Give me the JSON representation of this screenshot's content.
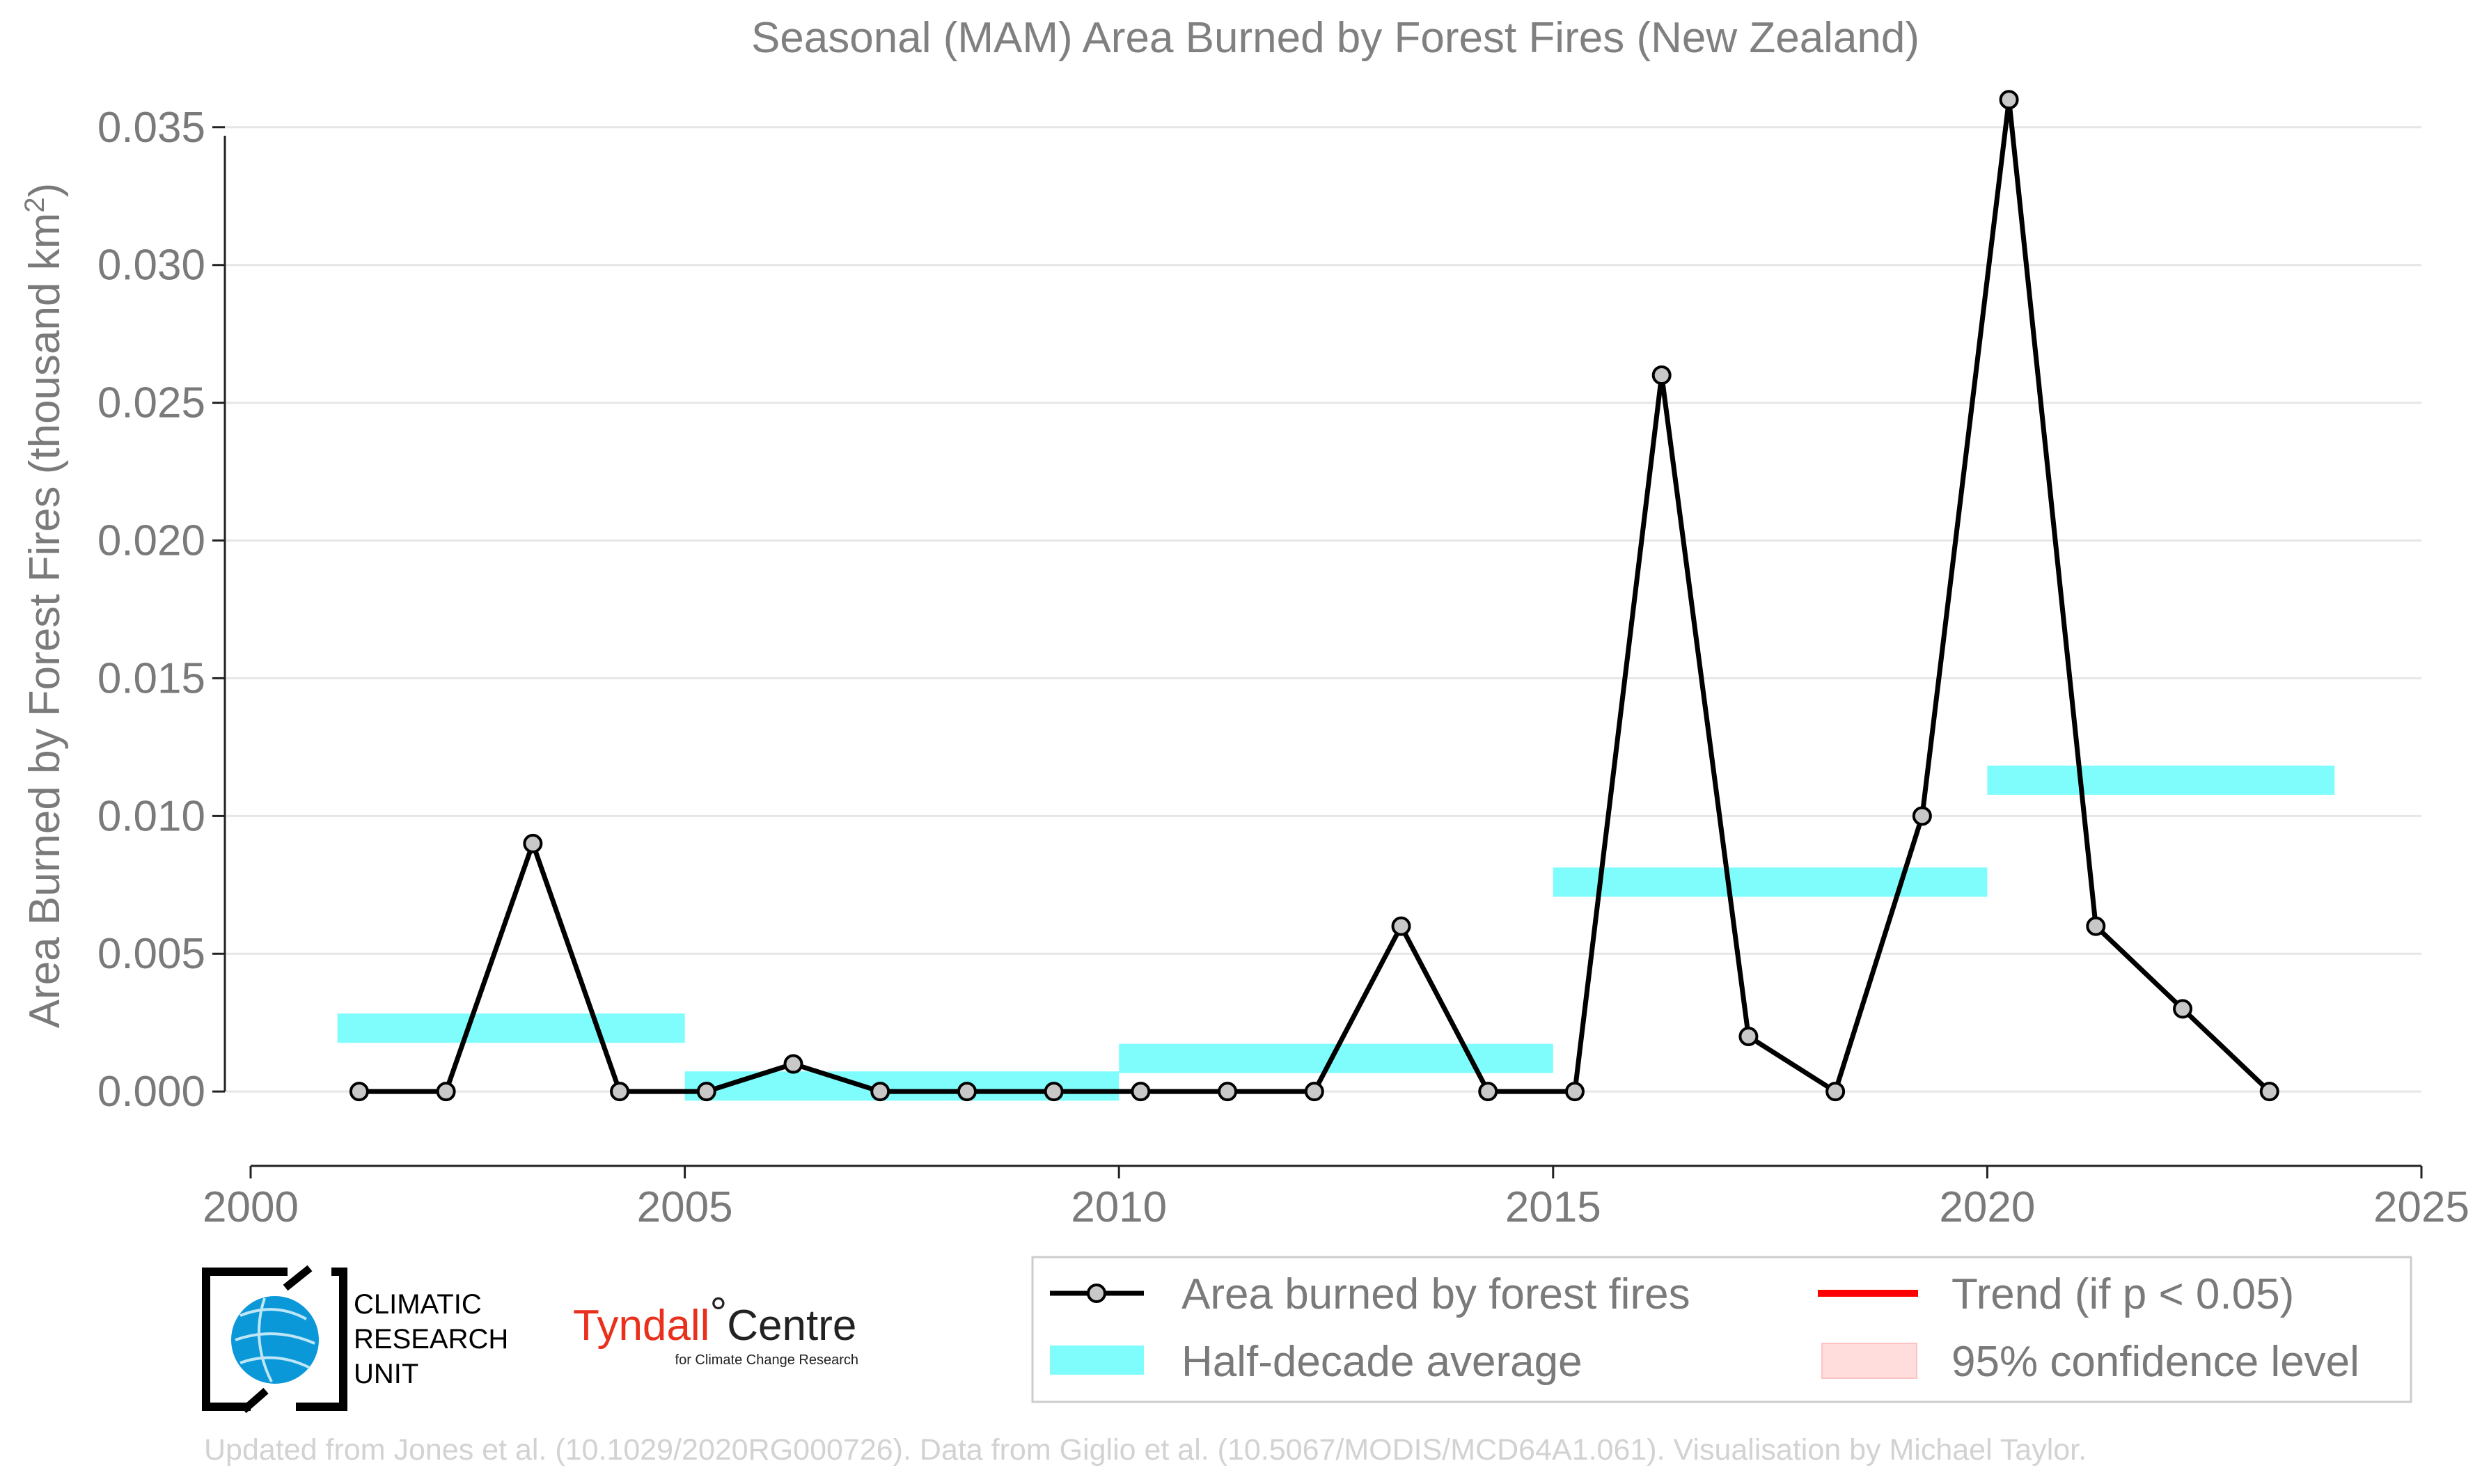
{
  "chart_data": {
    "type": "line",
    "title": "Seasonal (MAM) Area Burned by Forest Fires (New Zealand)",
    "ylabel_main": "Area Burned by Forest Fires (thousand km",
    "ylabel_sup": "2",
    "ylabel_end": ")",
    "xlim": [
      2000,
      2025
    ],
    "ylim": [
      -0.0027,
      0.0355
    ],
    "x_ticks": [
      2000,
      2005,
      2010,
      2015,
      2020,
      2025
    ],
    "x_tick_labels": [
      "2000",
      "2005",
      "2010",
      "2015",
      "2020",
      "2025"
    ],
    "y_ticks": [
      0.0,
      0.005,
      0.01,
      0.015,
      0.02,
      0.025,
      0.03,
      0.035
    ],
    "y_tick_labels": [
      "0.000",
      "0.005",
      "0.010",
      "0.015",
      "0.020",
      "0.025",
      "0.030",
      "0.035"
    ],
    "grid": "horizontal",
    "legend_position": "bottom-right",
    "series": [
      {
        "name": "Area burned by forest fires",
        "color": "#000000",
        "marker_fill": "#c8c8c8",
        "x": [
          2001.25,
          2002.25,
          2003.25,
          2004.25,
          2005.25,
          2006.25,
          2007.25,
          2008.25,
          2009.25,
          2010.25,
          2011.25,
          2012.25,
          2013.25,
          2014.25,
          2015.25,
          2016.25,
          2017.25,
          2018.25,
          2019.25,
          2020.25,
          2021.25,
          2022.25,
          2023.25
        ],
        "values": [
          0.0,
          0.0,
          0.009,
          0.0,
          0.0,
          0.001,
          0.0,
          0.0,
          0.0,
          0.0,
          0.0,
          0.0,
          0.006,
          0.0,
          0.0,
          0.026,
          0.002,
          0.0,
          0.01,
          0.036,
          0.006,
          0.003,
          0.0
        ]
      }
    ],
    "half_decade_average": {
      "name": "Half-decade average",
      "color": "#7ffdfd",
      "segments": [
        {
          "x0": 2001,
          "x1": 2005,
          "value": 0.0023
        },
        {
          "x0": 2005,
          "x1": 2010,
          "value": 0.0002
        },
        {
          "x0": 2010,
          "x1": 2015,
          "value": 0.0012
        },
        {
          "x0": 2015,
          "x1": 2020,
          "value": 0.0076
        },
        {
          "x0": 2020,
          "x1": 2024,
          "value": 0.0113
        }
      ]
    },
    "legend": [
      {
        "label": "Area burned by forest fires",
        "kind": "line-marker",
        "color": "#000000"
      },
      {
        "label": "Half-decade average",
        "kind": "band",
        "color": "#7ffdfd"
      },
      {
        "label": "Trend (if p < 0.05)",
        "kind": "line",
        "color": "#ff0000"
      },
      {
        "label": "95% confidence level",
        "kind": "patch",
        "color": "#ffdddd"
      }
    ]
  },
  "logos": {
    "cru_lines": [
      "CLIMATIC",
      "RESEARCH",
      "UNIT"
    ],
    "tyndall_main": "Tyndall",
    "tyndall_degree": "°",
    "tyndall_centre": "Centre",
    "tyndall_sub": "for Climate Change Research"
  },
  "credit": "Updated from Jones et al. (10.1029/2020RG000726). Data from Giglio et al. (10.5067/MODIS/MCD64A1.061). Visualisation by Michael Taylor."
}
